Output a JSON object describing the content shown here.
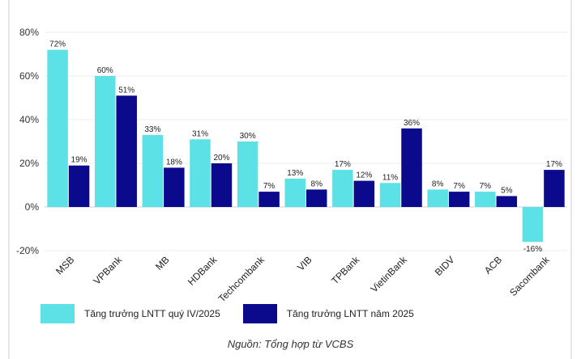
{
  "chart_data": {
    "type": "bar",
    "categories": [
      "MSB",
      "VPBank",
      "MB",
      "HDBank",
      "Techcombank",
      "VIB",
      "TPBank",
      "VietinBank",
      "BIDV",
      "ACB",
      "Sacombank"
    ],
    "series": [
      {
        "name": "Tăng trưởng LNTT quý IV/2025",
        "values": [
          72,
          60,
          33,
          31,
          30,
          13,
          17,
          11,
          8,
          7,
          -16
        ],
        "color": "#5ce1e6"
      },
      {
        "name": "Tăng trưởng LNTT năm 2025",
        "values": [
          19,
          51,
          18,
          20,
          7,
          8,
          12,
          36,
          7,
          5,
          17
        ],
        "color": "#0b0a8c"
      }
    ],
    "ylim": [
      -20,
      80
    ],
    "yticks": [
      -20,
      0,
      20,
      40,
      60,
      80
    ],
    "ytick_suffix": "%",
    "data_label_suffix": "%",
    "grid": true,
    "legend_position": "bottom-left"
  },
  "source_note": "Nguồn: Tổng hợp từ VCBS"
}
